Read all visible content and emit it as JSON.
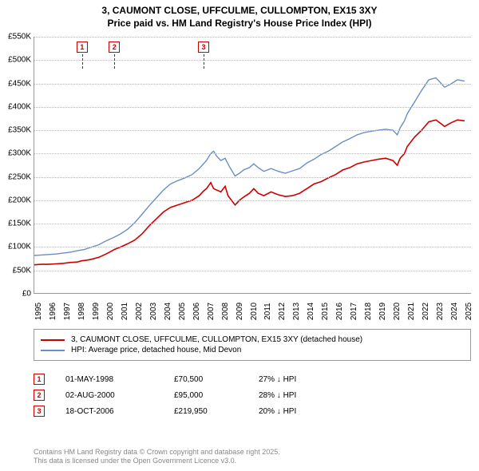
{
  "title": {
    "line1": "3, CAUMONT CLOSE, UFFCULME, CULLOMPTON, EX15 3XY",
    "line2": "Price paid vs. HM Land Registry's House Price Index (HPI)"
  },
  "chart": {
    "type": "line",
    "background_color": "#ffffff",
    "grid_color": "#bbbbbb",
    "axis_color": "#999999",
    "text_color": "#000000",
    "xlim": [
      1995,
      2025.5
    ],
    "ylim": [
      0,
      550
    ],
    "ytick_step": 50,
    "y_labels": [
      "£0",
      "£50K",
      "£100K",
      "£150K",
      "£200K",
      "£250K",
      "£300K",
      "£350K",
      "£400K",
      "£450K",
      "£500K",
      "£550K"
    ],
    "x_labels": [
      "1995",
      "1996",
      "1997",
      "1998",
      "1999",
      "2000",
      "2001",
      "2002",
      "2003",
      "2004",
      "2005",
      "2006",
      "2007",
      "2008",
      "2009",
      "2010",
      "2011",
      "2012",
      "2013",
      "2014",
      "2015",
      "2016",
      "2017",
      "2018",
      "2019",
      "2020",
      "2021",
      "2022",
      "2023",
      "2024",
      "2025"
    ],
    "series_red": {
      "color": "#cc0000",
      "width": 1.6,
      "data": [
        [
          1995,
          62
        ],
        [
          1995.5,
          63
        ],
        [
          1996,
          63
        ],
        [
          1996.5,
          64
        ],
        [
          1997,
          65
        ],
        [
          1997.5,
          67
        ],
        [
          1998,
          68
        ],
        [
          1998.3,
          70.5
        ],
        [
          1998.7,
          72
        ],
        [
          1999,
          74
        ],
        [
          1999.5,
          78
        ],
        [
          2000,
          85
        ],
        [
          2000.3,
          90
        ],
        [
          2000.6,
          95
        ],
        [
          2001,
          100
        ],
        [
          2001.5,
          107
        ],
        [
          2002,
          115
        ],
        [
          2002.5,
          128
        ],
        [
          2003,
          145
        ],
        [
          2003.5,
          160
        ],
        [
          2004,
          175
        ],
        [
          2004.5,
          185
        ],
        [
          2005,
          190
        ],
        [
          2005.5,
          195
        ],
        [
          2006,
          200
        ],
        [
          2006.5,
          210
        ],
        [
          2006.8,
          219.95
        ],
        [
          2007,
          225
        ],
        [
          2007.3,
          238
        ],
        [
          2007.5,
          225
        ],
        [
          2008,
          218
        ],
        [
          2008.3,
          230
        ],
        [
          2008.5,
          210
        ],
        [
          2008.8,
          198
        ],
        [
          2009,
          190
        ],
        [
          2009.3,
          200
        ],
        [
          2009.6,
          207
        ],
        [
          2010,
          215
        ],
        [
          2010.3,
          225
        ],
        [
          2010.6,
          215
        ],
        [
          2011,
          210
        ],
        [
          2011.5,
          218
        ],
        [
          2012,
          212
        ],
        [
          2012.5,
          208
        ],
        [
          2013,
          210
        ],
        [
          2013.5,
          215
        ],
        [
          2014,
          225
        ],
        [
          2014.5,
          235
        ],
        [
          2015,
          240
        ],
        [
          2015.5,
          248
        ],
        [
          2016,
          255
        ],
        [
          2016.5,
          265
        ],
        [
          2017,
          270
        ],
        [
          2017.5,
          278
        ],
        [
          2018,
          282
        ],
        [
          2018.5,
          285
        ],
        [
          2019,
          288
        ],
        [
          2019.5,
          290
        ],
        [
          2020,
          285
        ],
        [
          2020.3,
          275
        ],
        [
          2020.5,
          290
        ],
        [
          2020.8,
          300
        ],
        [
          2021,
          315
        ],
        [
          2021.5,
          335
        ],
        [
          2022,
          350
        ],
        [
          2022.5,
          368
        ],
        [
          2023,
          372
        ],
        [
          2023.3,
          365
        ],
        [
          2023.6,
          358
        ],
        [
          2024,
          365
        ],
        [
          2024.5,
          372
        ],
        [
          2025,
          370
        ]
      ]
    },
    "series_blue": {
      "color": "#6a8fc5",
      "width": 1.4,
      "data": [
        [
          1995,
          82
        ],
        [
          1995.5,
          83
        ],
        [
          1996,
          84
        ],
        [
          1996.5,
          85
        ],
        [
          1997,
          87
        ],
        [
          1997.5,
          89
        ],
        [
          1998,
          92
        ],
        [
          1998.5,
          95
        ],
        [
          1999,
          100
        ],
        [
          1999.5,
          105
        ],
        [
          2000,
          113
        ],
        [
          2000.5,
          120
        ],
        [
          2001,
          128
        ],
        [
          2001.5,
          138
        ],
        [
          2002,
          152
        ],
        [
          2002.5,
          170
        ],
        [
          2003,
          188
        ],
        [
          2003.5,
          205
        ],
        [
          2004,
          222
        ],
        [
          2004.5,
          235
        ],
        [
          2005,
          242
        ],
        [
          2005.5,
          248
        ],
        [
          2006,
          255
        ],
        [
          2006.5,
          268
        ],
        [
          2007,
          285
        ],
        [
          2007.3,
          300
        ],
        [
          2007.5,
          305
        ],
        [
          2007.7,
          295
        ],
        [
          2008,
          285
        ],
        [
          2008.3,
          290
        ],
        [
          2008.6,
          272
        ],
        [
          2009,
          252
        ],
        [
          2009.3,
          258
        ],
        [
          2009.6,
          265
        ],
        [
          2010,
          270
        ],
        [
          2010.3,
          278
        ],
        [
          2010.6,
          270
        ],
        [
          2011,
          262
        ],
        [
          2011.5,
          268
        ],
        [
          2012,
          262
        ],
        [
          2012.5,
          258
        ],
        [
          2013,
          263
        ],
        [
          2013.5,
          268
        ],
        [
          2014,
          280
        ],
        [
          2014.5,
          288
        ],
        [
          2015,
          298
        ],
        [
          2015.5,
          305
        ],
        [
          2016,
          315
        ],
        [
          2016.5,
          325
        ],
        [
          2017,
          332
        ],
        [
          2017.5,
          340
        ],
        [
          2018,
          345
        ],
        [
          2018.5,
          348
        ],
        [
          2019,
          350
        ],
        [
          2019.5,
          352
        ],
        [
          2020,
          350
        ],
        [
          2020.3,
          340
        ],
        [
          2020.5,
          355
        ],
        [
          2020.8,
          370
        ],
        [
          2021,
          385
        ],
        [
          2021.5,
          410
        ],
        [
          2022,
          435
        ],
        [
          2022.5,
          458
        ],
        [
          2023,
          462
        ],
        [
          2023.3,
          452
        ],
        [
          2023.6,
          442
        ],
        [
          2024,
          448
        ],
        [
          2024.5,
          458
        ],
        [
          2025,
          455
        ]
      ]
    },
    "markers": [
      {
        "n": "1",
        "x": 1998.33
      },
      {
        "n": "2",
        "x": 2000.58
      },
      {
        "n": "3",
        "x": 2006.8
      }
    ]
  },
  "legend": {
    "border_color": "#999999",
    "items": [
      {
        "color": "#cc0000",
        "label": "3, CAUMONT CLOSE, UFFCULME, CULLOMPTON, EX15 3XY (detached house)"
      },
      {
        "color": "#6a8fc5",
        "label": "HPI: Average price, detached house, Mid Devon"
      }
    ]
  },
  "sales": [
    {
      "n": "1",
      "date": "01-MAY-1998",
      "price": "£70,500",
      "diff": "27% ↓ HPI"
    },
    {
      "n": "2",
      "date": "02-AUG-2000",
      "price": "£95,000",
      "diff": "28% ↓ HPI"
    },
    {
      "n": "3",
      "date": "18-OCT-2006",
      "price": "£219,950",
      "diff": "20% ↓ HPI"
    }
  ],
  "footer": {
    "line1": "Contains HM Land Registry data © Crown copyright and database right 2025.",
    "line2": "This data is licensed under the Open Government Licence v3.0."
  },
  "marker_color": "#cc0000"
}
